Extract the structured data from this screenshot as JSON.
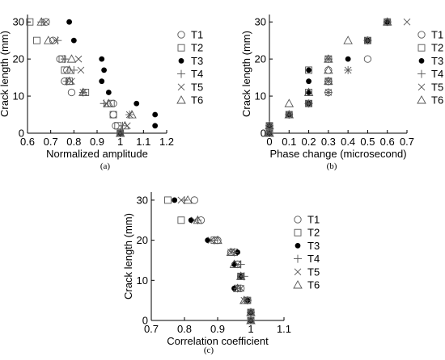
{
  "chart_data": [
    {
      "id": "a",
      "type": "scatter",
      "caption": "(a)",
      "xlabel": "Normalized amplitude",
      "ylabel": "Crack length (mm)",
      "xlim": [
        0.6,
        1.2
      ],
      "ylim": [
        0,
        32
      ],
      "xticks": [
        "0.6",
        "0.7",
        "0.8",
        "0.9",
        "1",
        "1.1",
        "1.2"
      ],
      "yticks": [
        "0",
        "10",
        "20",
        "30"
      ],
      "legend_position": "right",
      "series": [
        {
          "name": "T1",
          "marker": "circle",
          "points": [
            [
              1.0,
              0
            ],
            [
              1.0,
              0
            ],
            [
              0.98,
              2
            ],
            [
              0.97,
              5
            ],
            [
              0.97,
              8
            ],
            [
              0.79,
              11
            ],
            [
              0.76,
              14
            ],
            [
              0.77,
              17
            ],
            [
              0.74,
              20
            ],
            [
              0.71,
              25
            ],
            [
              0.68,
              30
            ]
          ]
        },
        {
          "name": "T2",
          "marker": "square",
          "points": [
            [
              1.0,
              0
            ],
            [
              0.99,
              2
            ],
            [
              0.97,
              5
            ],
            [
              0.96,
              8
            ],
            [
              0.85,
              11
            ],
            [
              0.78,
              14
            ],
            [
              0.76,
              17
            ],
            [
              0.75,
              20
            ],
            [
              0.64,
              25
            ],
            [
              0.61,
              30
            ]
          ]
        },
        {
          "name": "T3",
          "marker": "dot",
          "points": [
            [
              1.0,
              0
            ],
            [
              1.15,
              2
            ],
            [
              1.15,
              5
            ],
            [
              1.07,
              8
            ],
            [
              0.95,
              11
            ],
            [
              0.92,
              14
            ],
            [
              0.93,
              17
            ],
            [
              0.92,
              20
            ],
            [
              0.8,
              25
            ],
            [
              0.78,
              30
            ]
          ]
        },
        {
          "name": "T4",
          "marker": "plus",
          "points": [
            [
              1.0,
              0
            ],
            [
              1.01,
              2
            ],
            [
              1.04,
              5
            ],
            [
              0.93,
              8
            ],
            [
              0.84,
              11
            ],
            [
              0.77,
              14
            ],
            [
              0.8,
              17
            ],
            [
              0.76,
              20
            ],
            [
              0.73,
              25
            ],
            [
              0.66,
              30
            ]
          ]
        },
        {
          "name": "T5",
          "marker": "x",
          "points": [
            [
              1.0,
              0
            ],
            [
              1.03,
              2
            ],
            [
              1.04,
              5
            ],
            [
              0.94,
              8
            ],
            [
              0.84,
              11
            ],
            [
              0.79,
              14
            ],
            [
              0.83,
              17
            ],
            [
              0.82,
              20
            ],
            [
              0.72,
              25
            ],
            [
              0.68,
              30
            ]
          ]
        },
        {
          "name": "T6",
          "marker": "triangle",
          "points": [
            [
              1.0,
              0
            ],
            [
              1.02,
              2
            ],
            [
              1.05,
              5
            ],
            [
              0.95,
              8
            ],
            [
              0.84,
              11
            ],
            [
              0.78,
              14
            ],
            [
              0.78,
              17
            ],
            [
              0.79,
              20
            ],
            [
              0.69,
              25
            ],
            [
              0.66,
              30
            ]
          ]
        }
      ]
    },
    {
      "id": "b",
      "type": "scatter",
      "caption": "(b)",
      "xlabel": "Phase change (microsecond)",
      "ylabel": "Crack length (mm)",
      "xlim": [
        0,
        0.7
      ],
      "ylim": [
        0,
        32
      ],
      "xticks": [
        "0",
        "0.1",
        "0.2",
        "0.3",
        "0.4",
        "0.5",
        "0.6",
        "0.7"
      ],
      "yticks": [
        "0",
        "10",
        "20",
        "30"
      ],
      "legend_position": "right",
      "series": [
        {
          "name": "T1",
          "marker": "circle",
          "points": [
            [
              0,
              0
            ],
            [
              0,
              2
            ],
            [
              0.1,
              5
            ],
            [
              0.2,
              8
            ],
            [
              0.3,
              11
            ],
            [
              0.3,
              14
            ],
            [
              0.3,
              17
            ],
            [
              0.5,
              20
            ],
            [
              0.5,
              25
            ],
            [
              0.6,
              30
            ]
          ]
        },
        {
          "name": "T2",
          "marker": "square",
          "points": [
            [
              0,
              0
            ],
            [
              0,
              2
            ],
            [
              0.1,
              5
            ],
            [
              0.2,
              8
            ],
            [
              0.2,
              11
            ],
            [
              0.3,
              14
            ],
            [
              0.2,
              17
            ],
            [
              0.3,
              20
            ],
            [
              0.5,
              25
            ],
            [
              0.6,
              30
            ]
          ]
        },
        {
          "name": "T3",
          "marker": "dot",
          "points": [
            [
              0,
              0
            ],
            [
              0,
              2
            ],
            [
              0.1,
              5
            ],
            [
              0.2,
              8
            ],
            [
              0.2,
              11
            ],
            [
              0.2,
              14
            ],
            [
              0.2,
              17
            ],
            [
              0.4,
              20
            ],
            [
              0.5,
              25
            ],
            [
              0.6,
              30
            ]
          ]
        },
        {
          "name": "T4",
          "marker": "plus",
          "points": [
            [
              0,
              0
            ],
            [
              0,
              2
            ],
            [
              0.1,
              5
            ],
            [
              0.2,
              8
            ],
            [
              0.3,
              11
            ],
            [
              0.3,
              14
            ],
            [
              0.4,
              17
            ],
            [
              0.3,
              20
            ],
            [
              0.5,
              25
            ],
            [
              0.6,
              30
            ]
          ]
        },
        {
          "name": "T5",
          "marker": "x",
          "points": [
            [
              0,
              0
            ],
            [
              0,
              2
            ],
            [
              0.1,
              5
            ],
            [
              0.2,
              8
            ],
            [
              0.3,
              11
            ],
            [
              0.3,
              14
            ],
            [
              0.4,
              17
            ],
            [
              0.3,
              20
            ],
            [
              0.5,
              25
            ],
            [
              0.7,
              30
            ]
          ]
        },
        {
          "name": "T6",
          "marker": "triangle",
          "points": [
            [
              0,
              0
            ],
            [
              0,
              2
            ],
            [
              0.1,
              5
            ],
            [
              0.1,
              8
            ],
            [
              0.2,
              11
            ],
            [
              0.3,
              14
            ],
            [
              0.3,
              17
            ],
            [
              0.3,
              20
            ],
            [
              0.4,
              25
            ],
            [
              0.6,
              30
            ]
          ]
        }
      ]
    },
    {
      "id": "c",
      "type": "scatter",
      "caption": "(c)",
      "xlabel": "Correlation coefficient",
      "ylabel": "Crack length (mm)",
      "xlim": [
        0.7,
        1.1
      ],
      "ylim": [
        0,
        32
      ],
      "xticks": [
        "0.7",
        "0.8",
        "0.9",
        "1",
        "1.1"
      ],
      "yticks": [
        "0",
        "10",
        "20",
        "30"
      ],
      "legend_position": "right",
      "series": [
        {
          "name": "T1",
          "marker": "circle",
          "points": [
            [
              1.0,
              0
            ],
            [
              1.0,
              2
            ],
            [
              0.99,
              5
            ],
            [
              0.97,
              8
            ],
            [
              0.97,
              11
            ],
            [
              0.96,
              14
            ],
            [
              0.94,
              17
            ],
            [
              0.9,
              20
            ],
            [
              0.85,
              25
            ],
            [
              0.83,
              30
            ]
          ]
        },
        {
          "name": "T2",
          "marker": "square",
          "points": [
            [
              1.0,
              0
            ],
            [
              1.0,
              2
            ],
            [
              0.99,
              5
            ],
            [
              0.96,
              8
            ],
            [
              0.97,
              11
            ],
            [
              0.96,
              14
            ],
            [
              0.95,
              17
            ],
            [
              0.89,
              20
            ],
            [
              0.79,
              25
            ],
            [
              0.75,
              30
            ]
          ]
        },
        {
          "name": "T3",
          "marker": "dot",
          "points": [
            [
              1.0,
              0
            ],
            [
              1.0,
              2
            ],
            [
              0.99,
              5
            ],
            [
              0.95,
              8
            ],
            [
              0.97,
              11
            ],
            [
              0.95,
              14
            ],
            [
              0.96,
              17
            ],
            [
              0.87,
              20
            ],
            [
              0.82,
              25
            ],
            [
              0.77,
              30
            ]
          ]
        },
        {
          "name": "T4",
          "marker": "plus",
          "points": [
            [
              1.0,
              0
            ],
            [
              1.0,
              2
            ],
            [
              0.99,
              5
            ],
            [
              0.96,
              8
            ],
            [
              0.98,
              11
            ],
            [
              0.97,
              14
            ],
            [
              0.95,
              17
            ],
            [
              0.89,
              20
            ],
            [
              0.84,
              25
            ],
            [
              0.8,
              30
            ]
          ]
        },
        {
          "name": "T5",
          "marker": "x",
          "points": [
            [
              1.0,
              0
            ],
            [
              1.0,
              2
            ],
            [
              0.98,
              5
            ],
            [
              0.97,
              8
            ],
            [
              0.97,
              11
            ],
            [
              0.96,
              14
            ],
            [
              0.94,
              17
            ],
            [
              0.88,
              20
            ],
            [
              0.83,
              25
            ],
            [
              0.79,
              30
            ]
          ]
        },
        {
          "name": "T6",
          "marker": "triangle",
          "points": [
            [
              1.0,
              0
            ],
            [
              1.0,
              2
            ],
            [
              0.98,
              5
            ],
            [
              0.96,
              8
            ],
            [
              0.97,
              11
            ],
            [
              0.95,
              14
            ],
            [
              0.94,
              17
            ],
            [
              0.9,
              20
            ],
            [
              0.84,
              25
            ],
            [
              0.81,
              30
            ]
          ]
        }
      ]
    }
  ]
}
